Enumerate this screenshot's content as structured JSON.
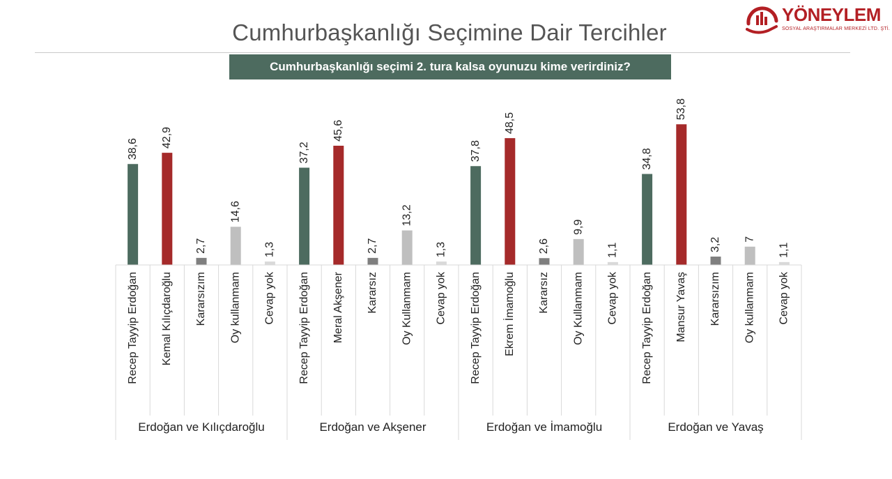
{
  "header": {
    "title": "Cumhurbaşkanlığı Seçimine Dair Tercihler",
    "question": "Cumhurbaşkanlığı seçimi 2. tura kalsa oyunuzu kime verirdiniz?"
  },
  "logo": {
    "name": "YÖNEYLEM",
    "subtitle": "SOSYAL ARAŞTIRMALAR MERKEZİ LTD. ŞTİ."
  },
  "colors": {
    "erdogan": "#4d6b5f",
    "opponent": "#a52a2a",
    "undecided": "#7f7f7f",
    "no_vote": "#bfbfbf",
    "no_answer": "#d9d9d9",
    "banner": "#4d6b5f",
    "logo": "#b31f24"
  },
  "chart_data": {
    "type": "bar",
    "title": "Cumhurbaşkanlığı seçimi 2. tura kalsa oyunuzu kime verirdiniz?",
    "xlabel": "",
    "ylabel": "",
    "ylim": [
      0,
      60
    ],
    "groups": [
      {
        "name": "Erdoğan ve Kılıçdaroğlu",
        "bars": [
          {
            "label": "Recep Tayyip Erdoğan",
            "value": 38.6,
            "display": "38,6",
            "kind": "erdogan"
          },
          {
            "label": "Kemal Kılıçdaroğlu",
            "value": 42.9,
            "display": "42,9",
            "kind": "opponent"
          },
          {
            "label": "Kararsızım",
            "value": 2.7,
            "display": "2,7",
            "kind": "undecided"
          },
          {
            "label": "Oy kullanmam",
            "value": 14.6,
            "display": "14,6",
            "kind": "no_vote"
          },
          {
            "label": "Cevap yok",
            "value": 1.3,
            "display": "1,3",
            "kind": "no_answer"
          }
        ]
      },
      {
        "name": "Erdoğan ve Akşener",
        "bars": [
          {
            "label": "Recep Tayyip Erdoğan",
            "value": 37.2,
            "display": "37,2",
            "kind": "erdogan"
          },
          {
            "label": "Meral Akşener",
            "value": 45.6,
            "display": "45,6",
            "kind": "opponent"
          },
          {
            "label": "Kararsız",
            "value": 2.7,
            "display": "2,7",
            "kind": "undecided"
          },
          {
            "label": "Oy Kullanmam",
            "value": 13.2,
            "display": "13,2",
            "kind": "no_vote"
          },
          {
            "label": "Cevap yok",
            "value": 1.3,
            "display": "1,3",
            "kind": "no_answer"
          }
        ]
      },
      {
        "name": "Erdoğan ve İmamoğlu",
        "bars": [
          {
            "label": "Recep Tayyip Erdoğan",
            "value": 37.8,
            "display": "37,8",
            "kind": "erdogan"
          },
          {
            "label": "Ekrem İmamoğlu",
            "value": 48.5,
            "display": "48,5",
            "kind": "opponent"
          },
          {
            "label": "Kararsız",
            "value": 2.6,
            "display": "2,6",
            "kind": "undecided"
          },
          {
            "label": "Oy Kullanmam",
            "value": 9.9,
            "display": "9,9",
            "kind": "no_vote"
          },
          {
            "label": "Cevap yok",
            "value": 1.1,
            "display": "1,1",
            "kind": "no_answer"
          }
        ]
      },
      {
        "name": "Erdoğan ve Yavaş",
        "bars": [
          {
            "label": "Recep Tayyip Erdoğan",
            "value": 34.8,
            "display": "34,8",
            "kind": "erdogan"
          },
          {
            "label": "Mansur Yavaş",
            "value": 53.8,
            "display": "53,8",
            "kind": "opponent"
          },
          {
            "label": "Kararsızım",
            "value": 3.2,
            "display": "3,2",
            "kind": "undecided"
          },
          {
            "label": "Oy kullanmam",
            "value": 7,
            "display": "7",
            "kind": "no_vote"
          },
          {
            "label": "Cevap yok",
            "value": 1.1,
            "display": "1,1",
            "kind": "no_answer"
          }
        ]
      }
    ]
  }
}
